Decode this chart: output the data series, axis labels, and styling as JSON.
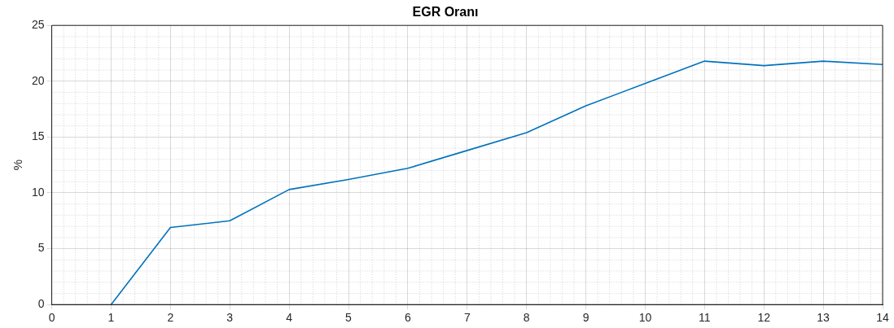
{
  "chart_data": {
    "type": "line",
    "title": "EGR Oranı",
    "ylabel": "%",
    "x": [
      1,
      2,
      3,
      4,
      5,
      6,
      7,
      8,
      9,
      10,
      11,
      12,
      13,
      14
    ],
    "series": [
      {
        "color": "#0072bd",
        "values": [
          0,
          6.9,
          7.5,
          10.3,
          11.2,
          12.2,
          13.8,
          15.4,
          17.8,
          19.8,
          21.8,
          21.4,
          21.8,
          21.5
        ]
      }
    ],
    "xlim": [
      0,
      14
    ],
    "xticks": [
      0,
      1,
      2,
      3,
      4,
      5,
      6,
      7,
      8,
      9,
      10,
      11,
      12,
      13,
      14
    ],
    "ylim": [
      0,
      25
    ],
    "yticks": [
      0,
      5,
      10,
      15,
      20,
      25
    ],
    "grid": true,
    "legend": false,
    "marker": "none",
    "line_style": "solid"
  }
}
